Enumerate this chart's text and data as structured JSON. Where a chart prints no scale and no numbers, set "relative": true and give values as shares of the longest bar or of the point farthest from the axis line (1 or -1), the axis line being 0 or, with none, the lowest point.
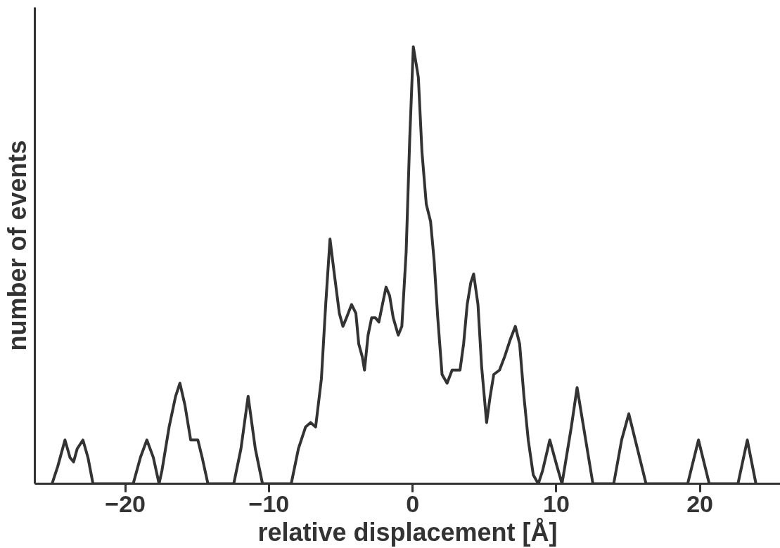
{
  "chart_data": {
    "type": "line",
    "relative": true,
    "xlabel": "relative displacement [Å]",
    "ylabel": "number of events",
    "xlim": [
      -26.3,
      25.6
    ],
    "xticks": [
      -20,
      -10,
      0,
      10,
      20
    ],
    "tick_labels": "x",
    "grid": false,
    "marker": "none",
    "line_style": "solid",
    "series": [
      {
        "color": "#333333",
        "x": [
          -25.1,
          -24.7,
          -24.2,
          -23.85,
          -23.6,
          -23.35,
          -22.95,
          -22.6,
          -22.25,
          -19.45,
          -18.95,
          -18.5,
          -18.05,
          -17.65,
          -17.45,
          -16.95,
          -16.5,
          -16.2,
          -15.85,
          -15.45,
          -15.25,
          -14.95,
          -14.65,
          -14.25,
          -12.45,
          -11.95,
          -11.45,
          -10.95,
          -10.45,
          -8.45,
          -7.95,
          -7.45,
          -7.1,
          -6.75,
          -6.35,
          -6.05,
          -5.75,
          -5.45,
          -5.1,
          -4.85,
          -4.6,
          -4.25,
          -3.95,
          -3.75,
          -3.5,
          -3.35,
          -3.1,
          -2.85,
          -2.6,
          -2.35,
          -2.1,
          -1.85,
          -1.6,
          -1.35,
          -1.0,
          -0.75,
          -0.45,
          -0.2,
          0.05,
          0.4,
          0.65,
          0.95,
          1.25,
          1.5,
          1.75,
          2.05,
          2.4,
          2.75,
          3.05,
          3.3,
          3.55,
          3.8,
          4.05,
          4.25,
          4.55,
          4.8,
          5.15,
          5.4,
          5.65,
          6.05,
          6.4,
          6.8,
          7.15,
          7.45,
          7.75,
          8.05,
          8.4,
          8.75,
          9.05,
          9.55,
          10.05,
          10.4,
          10.55,
          11.05,
          11.45,
          11.9,
          12.55,
          14.0,
          14.55,
          15.05,
          15.65,
          16.25,
          19.15,
          19.9,
          20.65,
          22.65,
          23.3,
          23.9
        ],
        "values": [
          0,
          0.04,
          0.1,
          0.06,
          0.05,
          0.08,
          0.1,
          0.06,
          0,
          0,
          0.06,
          0.1,
          0.06,
          0,
          0.03,
          0.13,
          0.2,
          0.23,
          0.18,
          0.1,
          0.1,
          0.1,
          0.06,
          0,
          0,
          0.08,
          0.2,
          0.08,
          0,
          0,
          0.08,
          0.13,
          0.14,
          0.13,
          0.24,
          0.41,
          0.56,
          0.48,
          0.39,
          0.36,
          0.38,
          0.41,
          0.39,
          0.32,
          0.29,
          0.26,
          0.34,
          0.38,
          0.38,
          0.37,
          0.41,
          0.45,
          0.43,
          0.38,
          0.34,
          0.36,
          0.53,
          0.79,
          1,
          0.93,
          0.76,
          0.64,
          0.6,
          0.51,
          0.38,
          0.25,
          0.23,
          0.26,
          0.26,
          0.26,
          0.32,
          0.41,
          0.46,
          0.48,
          0.41,
          0.27,
          0.14,
          0.2,
          0.25,
          0.26,
          0.29,
          0.33,
          0.36,
          0.32,
          0.2,
          0.1,
          0.02,
          0,
          0.03,
          0.1,
          0.04,
          0,
          0.03,
          0.13,
          0.22,
          0.13,
          0,
          0,
          0.1,
          0.16,
          0.08,
          0,
          0,
          0.1,
          0,
          0,
          0.1,
          0
        ]
      }
    ]
  }
}
